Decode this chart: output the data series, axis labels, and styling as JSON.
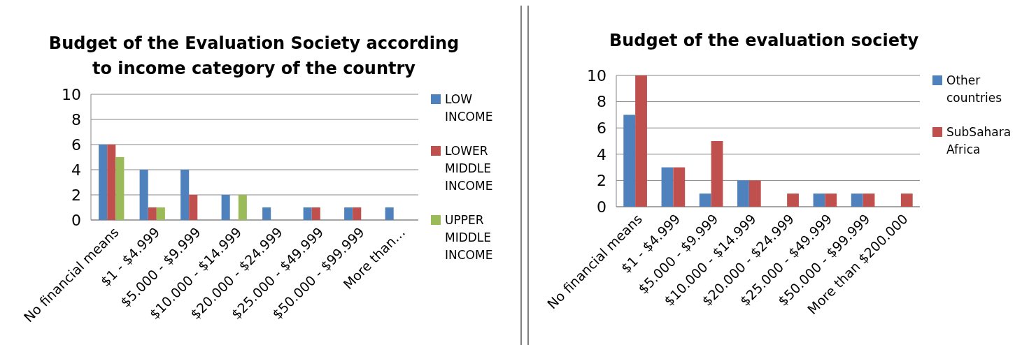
{
  "chart_data": [
    {
      "type": "bar",
      "title": "Budget of the Evaluation  Society according to income category of the country",
      "categories": [
        "No financial means",
        "$1 - $4.999",
        "$5.000 - $9.999",
        "$10.000 - $14.999",
        "$20.000 - $24.999",
        "$25.000 - $49.999",
        "$50.000 - $99.999",
        "More than…"
      ],
      "series": [
        {
          "name": "LOW INCOME",
          "color": "#4f81bd",
          "values": [
            6,
            4,
            4,
            2,
            1,
            1,
            1,
            1
          ]
        },
        {
          "name": "LOWER MIDDLE INCOME",
          "color": "#c0504d",
          "values": [
            6,
            1,
            2,
            0,
            0,
            1,
            1,
            0
          ]
        },
        {
          "name": "UPPER MIDDLE INCOME",
          "color": "#9bbb59",
          "values": [
            5,
            1,
            0,
            2,
            0,
            0,
            0,
            0
          ]
        }
      ],
      "ylim": [
        0,
        10
      ],
      "yticks": [
        0,
        2,
        4,
        6,
        8,
        10
      ],
      "grid": "y",
      "legend": "right"
    },
    {
      "type": "bar",
      "title": "Budget of the evaluation society",
      "categories": [
        "No financial means",
        "$1 - $4.999",
        "$5.000 - $9.999",
        "$10.000 - $14.999",
        "$20.000 - $24.999",
        "$25.000 - $49.999",
        "$50.000 - $99.999",
        "More than $200.000"
      ],
      "series": [
        {
          "name": "Other countries",
          "color": "#4f81bd",
          "values": [
            7,
            3,
            1,
            2,
            0,
            1,
            1,
            0
          ]
        },
        {
          "name": "SubSahara Africa",
          "color": "#c0504d",
          "values": [
            10,
            3,
            5,
            2,
            1,
            1,
            1,
            1
          ]
        }
      ],
      "ylim": [
        0,
        10
      ],
      "yticks": [
        0,
        2,
        4,
        6,
        8,
        10
      ],
      "grid": "y",
      "legend": "right"
    }
  ]
}
